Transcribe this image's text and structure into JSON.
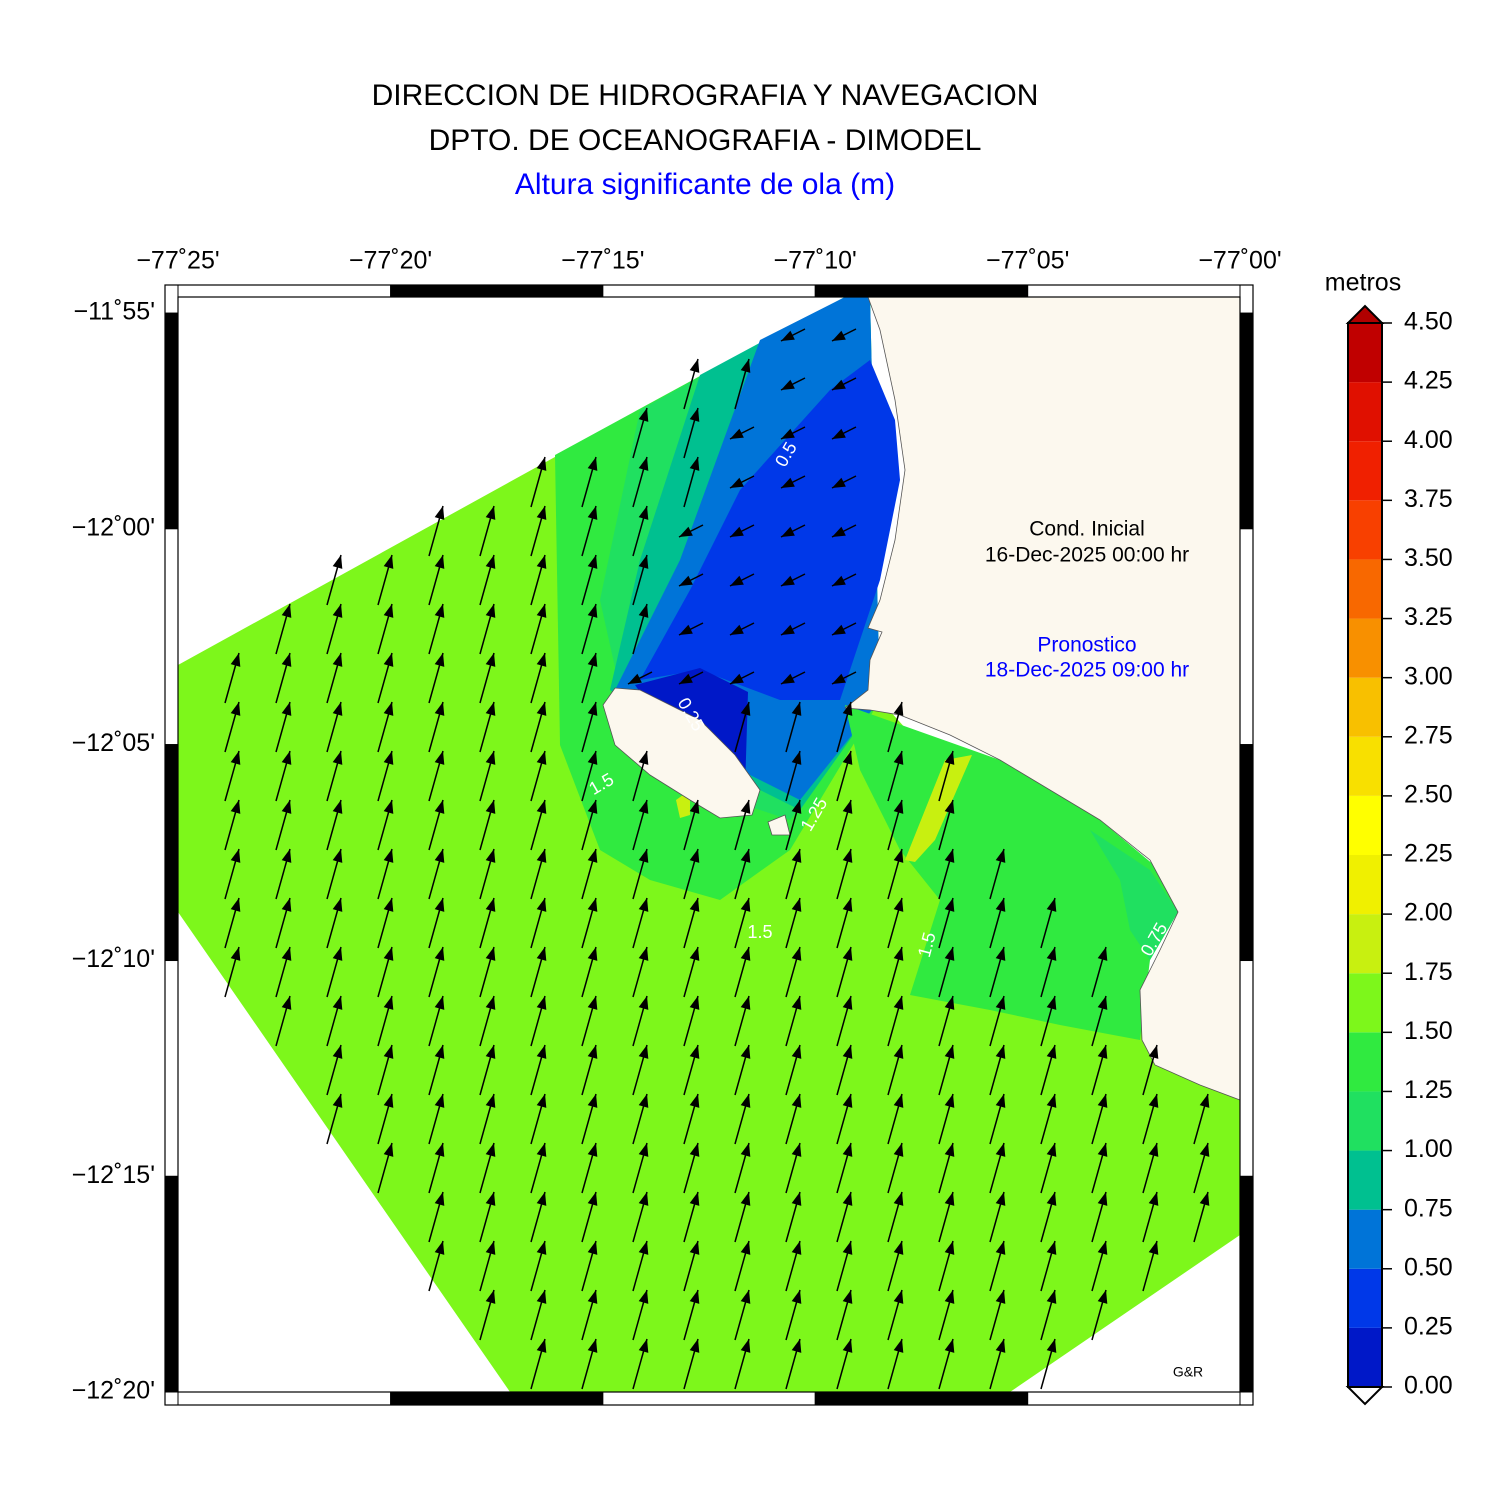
{
  "header": {
    "lines": [
      "DIRECCION DE HIDROGRAFIA Y NAVEGACION",
      "DPTO. DE OCEANOGRAFIA - DIMODEL"
    ],
    "subtitle": "Altura significante de ola (m)"
  },
  "map": {
    "xlim": [
      -77.4167,
      -77.0
    ],
    "ylim": [
      -12.3333,
      -11.9105
    ],
    "xticks": [
      {
        "value": -77.4167,
        "label": "−77˚25'"
      },
      {
        "value": -77.3333,
        "label": "−77˚20'"
      },
      {
        "value": -77.25,
        "label": "−77˚15'"
      },
      {
        "value": -77.1667,
        "label": "−77˚10'"
      },
      {
        "value": -77.0833,
        "label": "−77˚05'"
      },
      {
        "value": -77.0,
        "label": "−77˚00'"
      }
    ],
    "yticks": [
      {
        "value": -11.9167,
        "label": "−11˚55'"
      },
      {
        "value": -12.0,
        "label": "−12˚00'"
      },
      {
        "value": -12.0833,
        "label": "−12˚05'"
      },
      {
        "value": -12.1667,
        "label": "−12˚10'"
      },
      {
        "value": -12.25,
        "label": "−12˚15'"
      },
      {
        "value": -12.3333,
        "label": "−12˚20'"
      }
    ],
    "contour_labels": [
      0.5,
      0.25,
      1.5,
      1.25,
      1.5,
      1.5,
      0.75
    ]
  },
  "annotations": {
    "initial_label": "Cond. Inicial",
    "initial_time": "16-Dec-2025 00:00 hr",
    "forecast_label": "Pronostico",
    "forecast_time": "18-Dec-2025 09:00 hr",
    "credit": "G&R"
  },
  "colorbar": {
    "label": "metros",
    "ticks": [
      {
        "value": 0,
        "label": "0.00"
      },
      {
        "value": 0.25,
        "label": "0.25"
      },
      {
        "value": 0.5,
        "label": "0.50"
      },
      {
        "value": 0.75,
        "label": "0.75"
      },
      {
        "value": 1,
        "label": "1.00"
      },
      {
        "value": 1.25,
        "label": "1.25"
      },
      {
        "value": 1.5,
        "label": "1.50"
      },
      {
        "value": 1.75,
        "label": "1.75"
      },
      {
        "value": 2,
        "label": "2.00"
      },
      {
        "value": 2.25,
        "label": "2.25"
      },
      {
        "value": 2.5,
        "label": "2.50"
      },
      {
        "value": 2.75,
        "label": "2.75"
      },
      {
        "value": 3,
        "label": "3.00"
      },
      {
        "value": 3.25,
        "label": "3.25"
      },
      {
        "value": 3.5,
        "label": "3.50"
      },
      {
        "value": 3.75,
        "label": "3.75"
      },
      {
        "value": 4,
        "label": "4.00"
      },
      {
        "value": 4.25,
        "label": "4.25"
      },
      {
        "value": 4.5,
        "label": "4.50"
      }
    ],
    "colors": [
      "#0018c8",
      "#0038e8",
      "#0074d8",
      "#00c090",
      "#20e060",
      "#30ea40",
      "#7df71b",
      "#c8f010",
      "#f0f000",
      "#ffff00",
      "#f8e000",
      "#f8c000",
      "#f89000",
      "#f86800",
      "#f84000",
      "#f02000",
      "#e01000",
      "#c00000"
    ]
  }
}
